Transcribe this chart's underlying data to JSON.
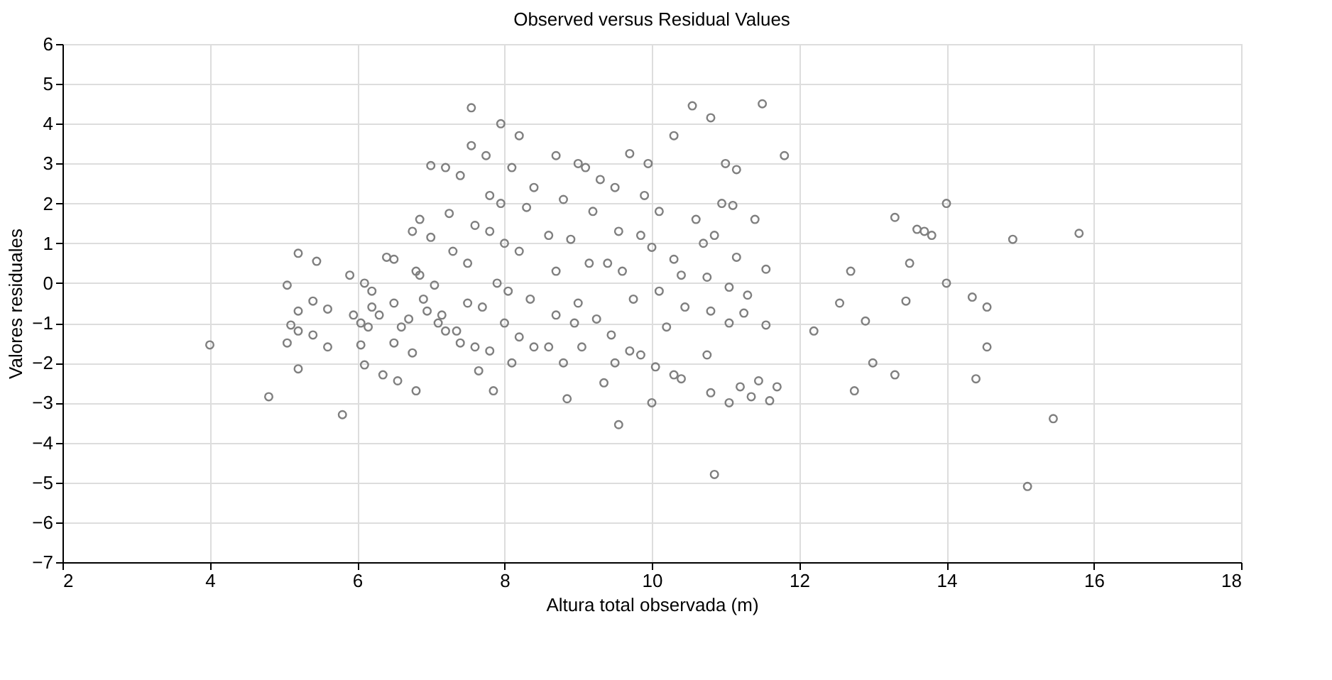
{
  "chart_data": {
    "type": "scatter",
    "title": "Observed versus Residual Values",
    "xlabel": "Altura total observada (m)",
    "ylabel": "Valores residuales",
    "xlim": [
      2,
      18
    ],
    "xticks": [
      2,
      4,
      6,
      8,
      10,
      12,
      14,
      16,
      18
    ],
    "ylim": [
      -7,
      6
    ],
    "yticks": [
      -7,
      -6,
      -5,
      -4,
      -3,
      -2,
      -1,
      0,
      1,
      2,
      3,
      4,
      5,
      6
    ],
    "grid": true,
    "marker": "circle",
    "series": [
      {
        "color": "#7f7f7f",
        "x": [
          4.0,
          4.8,
          5.05,
          5.1,
          5.05,
          5.2,
          5.2,
          5.2,
          5.2,
          5.4,
          5.4,
          5.45,
          5.6,
          5.6,
          5.8,
          5.9,
          5.95,
          6.05,
          6.1,
          6.2,
          6.05,
          6.1,
          6.15,
          6.2,
          6.3,
          6.35,
          6.4,
          6.5,
          6.5,
          6.5,
          6.55,
          6.6,
          6.7,
          6.75,
          6.8,
          6.85,
          6.75,
          6.8,
          6.85,
          6.9,
          6.95,
          7.0,
          7.0,
          7.05,
          7.1,
          7.15,
          7.2,
          7.2,
          7.25,
          7.3,
          7.35,
          7.4,
          7.4,
          7.5,
          7.5,
          7.55,
          7.55,
          7.6,
          7.6,
          7.65,
          7.7,
          7.75,
          7.8,
          7.8,
          7.8,
          7.85,
          7.9,
          7.95,
          7.95,
          8.0,
          8.0,
          8.05,
          8.1,
          8.1,
          8.2,
          8.2,
          8.2,
          8.3,
          8.35,
          8.4,
          8.4,
          8.6,
          8.6,
          8.7,
          8.7,
          8.7,
          8.8,
          8.8,
          8.85,
          8.9,
          8.95,
          9.0,
          9.0,
          9.05,
          9.1,
          9.15,
          9.2,
          9.25,
          9.3,
          9.35,
          9.4,
          9.45,
          9.5,
          9.5,
          9.55,
          9.55,
          9.6,
          9.7,
          9.7,
          9.75,
          9.85,
          9.85,
          9.9,
          9.95,
          10.0,
          10.0,
          10.05,
          10.1,
          10.1,
          10.2,
          10.3,
          10.3,
          10.3,
          10.4,
          10.4,
          10.45,
          10.55,
          10.6,
          10.7,
          10.75,
          10.75,
          10.8,
          10.8,
          10.8,
          10.85,
          10.85,
          10.95,
          11.0,
          11.05,
          11.05,
          11.05,
          11.1,
          11.15,
          11.15,
          11.2,
          11.25,
          11.3,
          11.35,
          11.4,
          11.45,
          11.5,
          11.55,
          11.55,
          11.6,
          11.7,
          11.8,
          12.2,
          12.55,
          12.7,
          12.75,
          12.9,
          13.0,
          13.3,
          13.3,
          13.45,
          13.5,
          13.6,
          13.7,
          13.8,
          14.0,
          14.0,
          14.35,
          14.4,
          14.55,
          14.55,
          14.9,
          15.1,
          15.45,
          15.8
        ],
        "values": [
          -1.55,
          -2.85,
          -0.05,
          -1.05,
          -1.5,
          0.75,
          -0.7,
          -1.2,
          -2.15,
          -0.45,
          -1.3,
          0.55,
          -0.65,
          -1.6,
          -3.3,
          0.2,
          -0.8,
          -1.0,
          0.0,
          -0.2,
          -1.55,
          -2.05,
          -1.1,
          -0.6,
          -0.8,
          -2.3,
          0.65,
          0.6,
          -0.5,
          -1.5,
          -2.45,
          -1.1,
          -0.9,
          -1.75,
          -2.7,
          1.6,
          1.3,
          0.3,
          0.2,
          -0.4,
          -0.7,
          2.95,
          1.15,
          -0.05,
          -1.0,
          -0.8,
          -1.2,
          2.9,
          1.75,
          0.8,
          -1.2,
          2.7,
          -1.5,
          0.5,
          -0.5,
          4.4,
          3.45,
          1.45,
          -1.6,
          -2.2,
          -0.6,
          3.2,
          2.2,
          1.3,
          -1.7,
          -2.7,
          0.0,
          4.0,
          2.0,
          1.0,
          -1.0,
          -0.2,
          2.9,
          -2.0,
          3.7,
          0.8,
          -1.35,
          1.9,
          -0.4,
          2.4,
          -1.6,
          1.2,
          -1.6,
          3.2,
          0.3,
          -0.8,
          2.1,
          -2.0,
          -2.9,
          1.1,
          -1.0,
          -0.5,
          3.0,
          -1.6,
          2.9,
          0.5,
          1.8,
          -0.9,
          2.6,
          -2.5,
          0.5,
          -1.3,
          -2.0,
          2.4,
          1.3,
          -3.55,
          0.3,
          3.25,
          -1.7,
          -0.4,
          -1.8,
          1.2,
          2.2,
          3.0,
          -3.0,
          0.9,
          -2.1,
          -0.2,
          1.8,
          -1.1,
          3.7,
          -2.3,
          0.6,
          -2.4,
          0.2,
          -0.6,
          4.45,
          1.6,
          1.0,
          -1.8,
          0.15,
          -0.7,
          -2.75,
          4.15,
          1.2,
          -4.8,
          2.0,
          3.0,
          -3.0,
          -1.0,
          -0.1,
          1.95,
          0.65,
          2.85,
          -2.6,
          -0.75,
          -0.3,
          -2.85,
          1.6,
          -2.45,
          4.5,
          -1.05,
          0.35,
          -2.95,
          -2.6,
          3.2,
          -1.2,
          -0.5,
          0.3,
          -2.7,
          -0.95,
          -2.0,
          -2.3,
          1.65,
          -0.45,
          0.5,
          1.35,
          1.3,
          1.2,
          2.0,
          0.0,
          -0.35,
          -2.4,
          -0.6,
          -1.6,
          1.1,
          -5.1,
          -3.4,
          1.25
        ]
      }
    ]
  }
}
